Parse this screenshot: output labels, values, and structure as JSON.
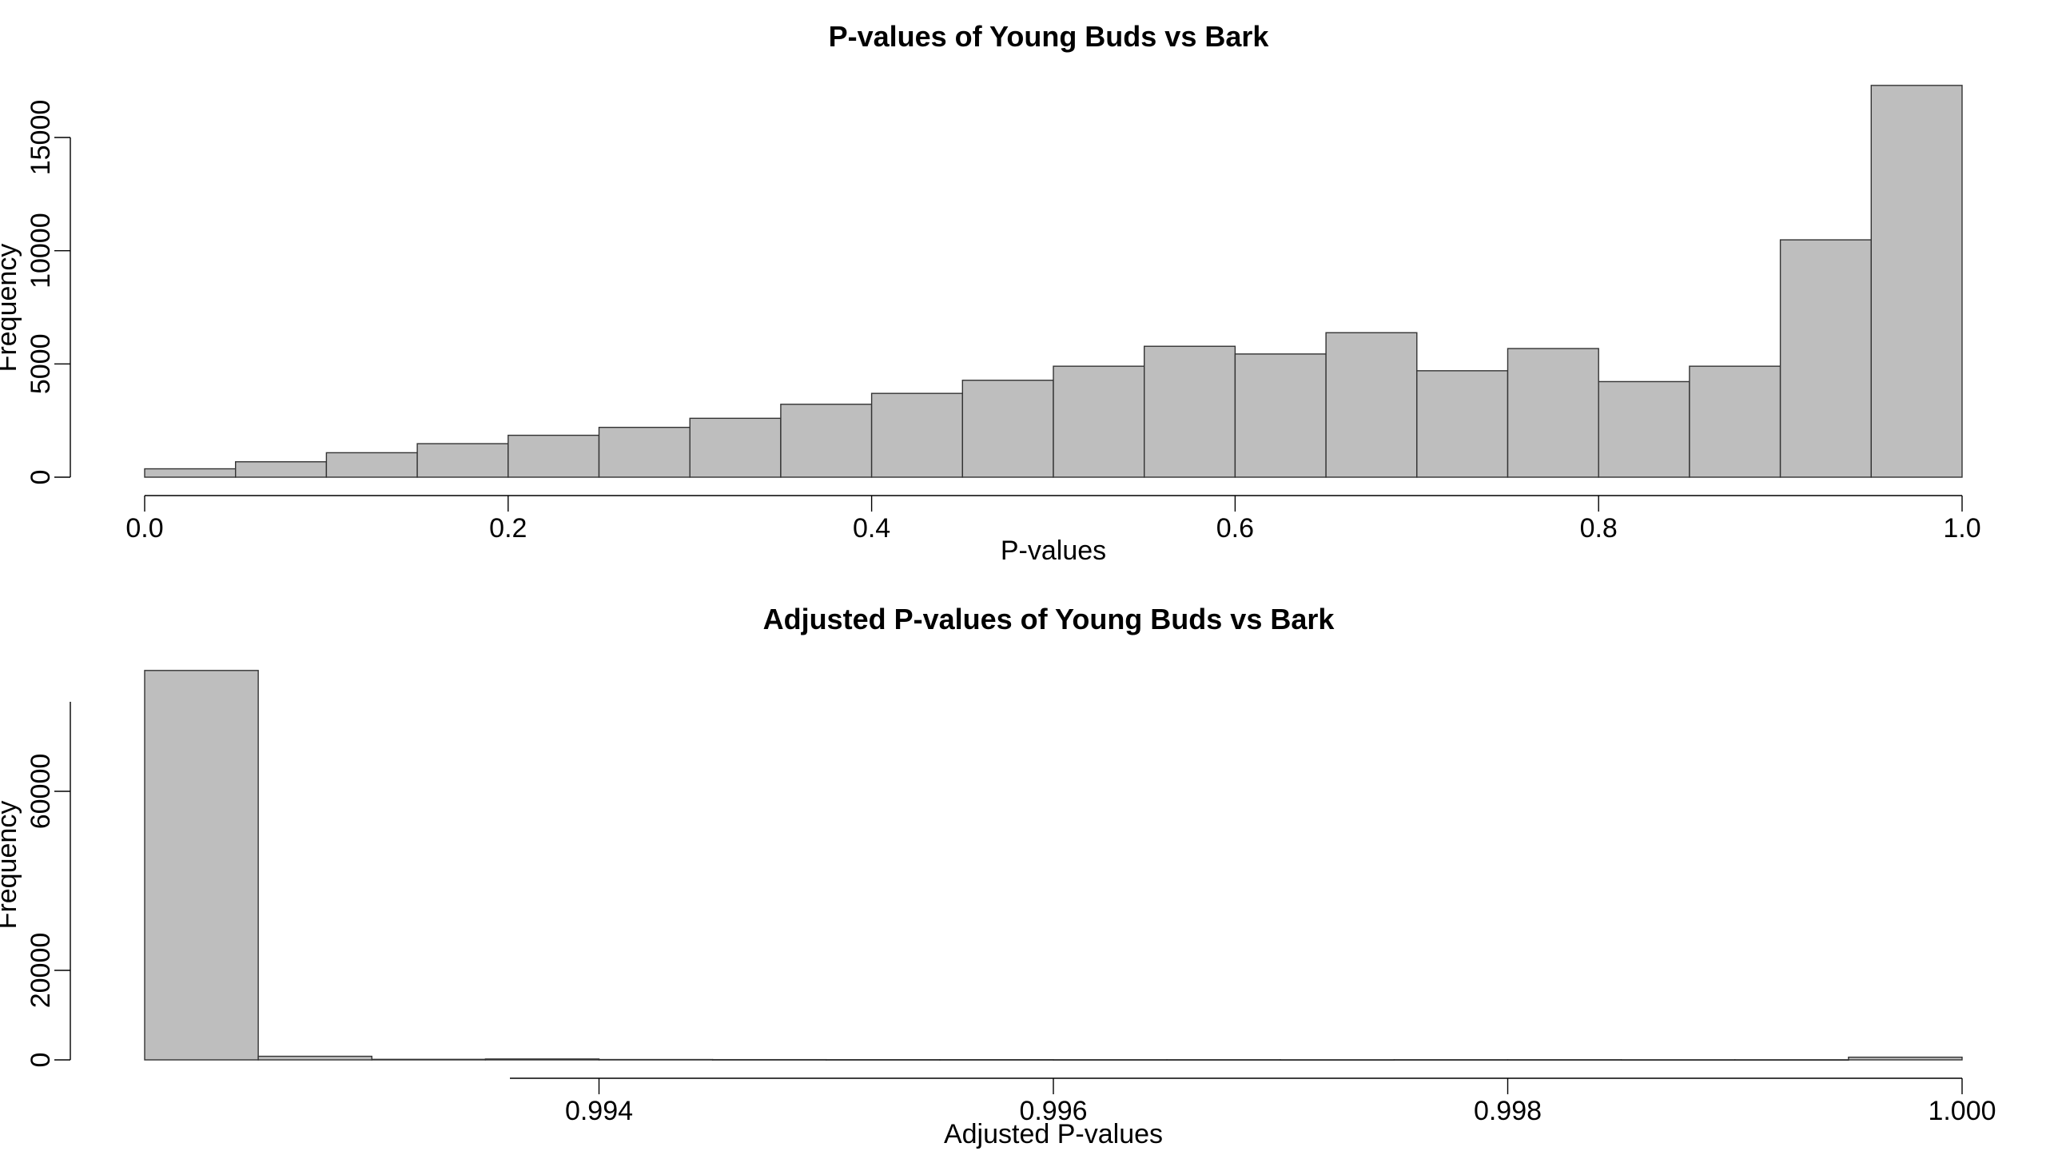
{
  "chart_data": [
    {
      "type": "bar",
      "title": "P-values of Young Buds vs Bark",
      "xlabel": "P-values",
      "ylabel": "Frequency",
      "xlim": [
        0.0,
        1.0
      ],
      "ylim": [
        0,
        17500
      ],
      "bin_edges": [
        0.0,
        0.05,
        0.1,
        0.15,
        0.2,
        0.25,
        0.3,
        0.35,
        0.4,
        0.45,
        0.5,
        0.55,
        0.6,
        0.65,
        0.7,
        0.75,
        0.8,
        0.85,
        0.9,
        0.95,
        1.0
      ],
      "values": [
        370,
        680,
        1080,
        1480,
        1850,
        2200,
        2600,
        3220,
        3700,
        4280,
        4900,
        5780,
        5440,
        6380,
        4700,
        5680,
        4220,
        4900,
        10480,
        17300
      ],
      "xticks": [
        0.0,
        0.2,
        0.4,
        0.6,
        0.8,
        1.0
      ],
      "xtick_labels": [
        "0.0",
        "0.2",
        "0.4",
        "0.6",
        "0.8",
        "1.0"
      ],
      "yticks": [
        0,
        5000,
        10000,
        15000
      ],
      "ytick_labels": [
        "0",
        "5000",
        "10000",
        "15000"
      ],
      "bar_color": "#bebebe",
      "grid": false
    },
    {
      "type": "bar",
      "title": "Adjusted P-values of Young Buds vs Bark",
      "xlabel": "Adjusted P-values",
      "ylabel": "Frequency",
      "xlim": [
        0.992,
        1.0
      ],
      "ylim": [
        0,
        80000
      ],
      "bin_edges": [
        0.992,
        0.9925,
        0.993,
        0.9935,
        0.994,
        0.9945,
        0.995,
        0.9955,
        0.996,
        0.9965,
        0.997,
        0.9975,
        0.998,
        0.9985,
        0.999,
        0.9995,
        1.0
      ],
      "values": [
        87000,
        800,
        120,
        200,
        80,
        60,
        50,
        50,
        40,
        40,
        30,
        40,
        40,
        30,
        30,
        600
      ],
      "xticks": [
        0.994,
        0.996,
        0.998,
        1.0
      ],
      "xtick_labels": [
        "0.994",
        "0.996",
        "0.998",
        "1.000"
      ],
      "yticks": [
        0,
        20000,
        60000
      ],
      "ytick_labels": [
        "0",
        "20000",
        "60000"
      ],
      "bar_color": "#bebebe",
      "grid": false
    }
  ]
}
